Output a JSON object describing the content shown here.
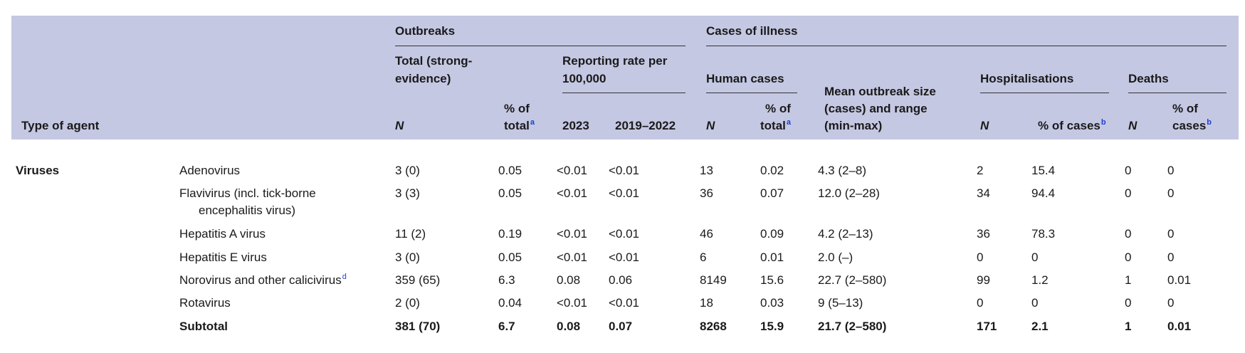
{
  "header": {
    "type_of_agent": "Type of agent",
    "outbreaks": "Outbreaks",
    "total_strong_1": "Total (strong-",
    "total_strong_2": "evidence)",
    "n": "N",
    "pct_total_1": "% of",
    "pct_total_2": "total",
    "sup_a": "a",
    "reporting_rate_1": "Reporting rate per",
    "reporting_rate_2": "100,000",
    "year_2023": "2023",
    "year_2019_2022": "2019–2022",
    "cases_of_illness": "Cases of illness",
    "human_cases": "Human cases",
    "mean_1": "Mean outbreak size",
    "mean_2": "(cases) and range",
    "mean_3": "(min-max)",
    "hospitalisations": "Hospitalisations",
    "pct_cases": "% of cases",
    "sup_b": "b",
    "deaths": "Deaths",
    "pct_cases_1": "% of",
    "pct_cases_2": "cases"
  },
  "group_label": "Viruses",
  "rows": [
    {
      "agent": "Adenovirus",
      "agent2": "",
      "sup": "",
      "total": "3 (0)",
      "pct_total": "0.05",
      "r2023": "<0.01",
      "r2019": "<0.01",
      "cases_n": "13",
      "cases_pct": "0.02",
      "mean": "4.3 (2–8)",
      "hosp_n": "2",
      "hosp_pct": "15.4",
      "deaths_n": "0",
      "deaths_pct": "0"
    },
    {
      "agent": "Flavivirus (incl. tick-borne",
      "agent2": "encephalitis virus)",
      "sup": "",
      "total": "3 (3)",
      "pct_total": "0.05",
      "r2023": "<0.01",
      "r2019": "<0.01",
      "cases_n": "36",
      "cases_pct": "0.07",
      "mean": "12.0 (2–28)",
      "hosp_n": "34",
      "hosp_pct": "94.4",
      "deaths_n": "0",
      "deaths_pct": "0"
    },
    {
      "agent": "Hepatitis A virus",
      "agent2": "",
      "sup": "",
      "total": "11 (2)",
      "pct_total": "0.19",
      "r2023": "<0.01",
      "r2019": "<0.01",
      "cases_n": "46",
      "cases_pct": "0.09",
      "mean": "4.2 (2–13)",
      "hosp_n": "36",
      "hosp_pct": "78.3",
      "deaths_n": "0",
      "deaths_pct": "0"
    },
    {
      "agent": "Hepatitis E virus",
      "agent2": "",
      "sup": "",
      "total": "3 (0)",
      "pct_total": "0.05",
      "r2023": "<0.01",
      "r2019": "<0.01",
      "cases_n": "6",
      "cases_pct": "0.01",
      "mean": "2.0 (–)",
      "hosp_n": "0",
      "hosp_pct": "0",
      "deaths_n": "0",
      "deaths_pct": "0"
    },
    {
      "agent": "Norovirus and other calicivirus",
      "agent2": "",
      "sup": "d",
      "total": "359 (65)",
      "pct_total": "6.3",
      "r2023": "0.08",
      "r2019": "0.06",
      "cases_n": "8149",
      "cases_pct": "15.6",
      "mean": "22.7 (2–580)",
      "hosp_n": "99",
      "hosp_pct": "1.2",
      "deaths_n": "1",
      "deaths_pct": "0.01"
    },
    {
      "agent": "Rotavirus",
      "agent2": "",
      "sup": "",
      "total": "2 (0)",
      "pct_total": "0.04",
      "r2023": "<0.01",
      "r2019": "<0.01",
      "cases_n": "18",
      "cases_pct": "0.03",
      "mean": "9 (5–13)",
      "hosp_n": "0",
      "hosp_pct": "0",
      "deaths_n": "0",
      "deaths_pct": "0"
    }
  ],
  "subtotal": {
    "agent": "Subtotal",
    "total": "381 (70)",
    "pct_total": "6.7",
    "r2023": "0.08",
    "r2019": "0.07",
    "cases_n": "8268",
    "cases_pct": "15.9",
    "mean": "21.7 (2–580)",
    "hosp_n": "171",
    "hosp_pct": "2.1",
    "deaths_n": "1",
    "deaths_pct": "0.01"
  },
  "colors": {
    "header_bg": "#c5c8e3",
    "footnote_link": "#1a3fd6"
  }
}
